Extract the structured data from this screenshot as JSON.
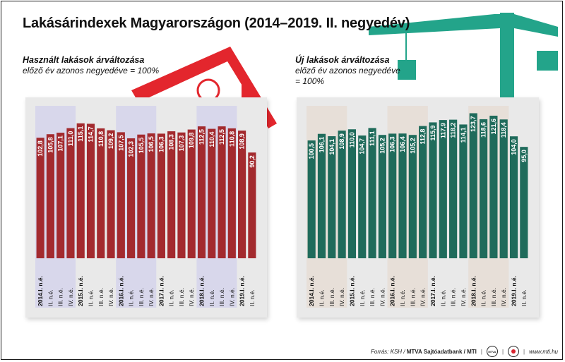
{
  "title": "Lakásárindexek Magyarországon (2014–2019. II. negyedév)",
  "colors": {
    "used_bar": "#a32a2e",
    "new_bar": "#1f6b5b",
    "roof": "#e3262d",
    "crane": "#23a48a",
    "highlight_used": "#d8d7eb",
    "highlight_new": "#e7dfd8"
  },
  "footer": {
    "source_prefix": "Forrás: KSH / ",
    "source_bold": "MTVA Sajtóadatbank / MTI",
    "logo1_text": "MTVA",
    "website": "www.mti.hu"
  },
  "chart_data": [
    {
      "type": "bar",
      "title": "Használt lakások árváltozása",
      "subtitle": "előző év azonos negyedéve = 100%",
      "categories": [
        "2014.I. n.é.",
        "II. n.é.",
        "III. n.é.",
        "IV. n.é.",
        "2015.I. n.é.",
        "II. n.é.",
        "III. n.é.",
        "IV. n.é.",
        "2016.I. n.é.",
        "II. n.é.",
        "III. n.é.",
        "IV. n.é.",
        "2017.I. n.é.",
        "II. n.é.",
        "III. n.é.",
        "IV. n.é.",
        "2018.I. n.é.",
        "II. n.é.",
        "III. n.é.",
        "IV. n.é.",
        "2019.I. n.é.",
        "II. n.é."
      ],
      "values": [
        102.8,
        105.8,
        107.1,
        111.0,
        115.1,
        114.7,
        110.8,
        109.2,
        107.5,
        102.3,
        105.5,
        106.5,
        106.3,
        108.3,
        107.3,
        109.8,
        112.5,
        110.4,
        112.5,
        110.8,
        108.9,
        90.2
      ],
      "labels": [
        "102,8",
        "105,8",
        "107,1",
        "111,0",
        "115,1",
        "114,7",
        "110,8",
        "109,2",
        "107,5",
        "102,3",
        "105,5",
        "106,5",
        "106,3",
        "108,3",
        "107,3",
        "109,8",
        "112,5",
        "110,4",
        "112,5",
        "110,8",
        "108,9",
        "90,2"
      ],
      "ylim": [
        0,
        130
      ],
      "highlight_years": [
        "2014",
        "2016",
        "2018"
      ],
      "grid": false,
      "legend": "none"
    },
    {
      "type": "bar",
      "title": "Új lakások árváltozása",
      "subtitle": "előző év azonos negyedéve = 100%",
      "categories": [
        "2014.I. n.é.",
        "II. n.é.",
        "III. n.é.",
        "IV. n.é.",
        "2015.I. n.é.",
        "II. n.é.",
        "III. n.é.",
        "IV. n.é.",
        "2016.I. n.é.",
        "II. n.é.",
        "III. n.é.",
        "IV. n.é.",
        "2017.I. n.é.",
        "II. n.é.",
        "III. n.é.",
        "IV. n.é.",
        "2018.I. n.é.",
        "II. n.é.",
        "III. n.é.",
        "IV. n.é.",
        "2019.I. n.é.",
        "II. n.é."
      ],
      "values": [
        100.5,
        106.1,
        104.1,
        108.9,
        110.0,
        104.7,
        111.1,
        105.2,
        106.3,
        106.4,
        105.2,
        112.8,
        115.9,
        117.9,
        118.2,
        114.1,
        123.7,
        118.6,
        121.6,
        118.4,
        104.0,
        95.0
      ],
      "labels": [
        "100,5",
        "106,1",
        "104,1",
        "108,9",
        "110,0",
        "104,7",
        "111,1",
        "105,2",
        "106,3",
        "106,4",
        "105,2",
        "112,8",
        "115,9",
        "117,9",
        "118,2",
        "114,1",
        "123,7",
        "118,6",
        "121,6",
        "118,4",
        "104,0",
        "95,0"
      ],
      "ylim": [
        0,
        130
      ],
      "highlight_years": [
        "2014",
        "2016",
        "2018"
      ],
      "grid": false,
      "legend": "none"
    }
  ]
}
